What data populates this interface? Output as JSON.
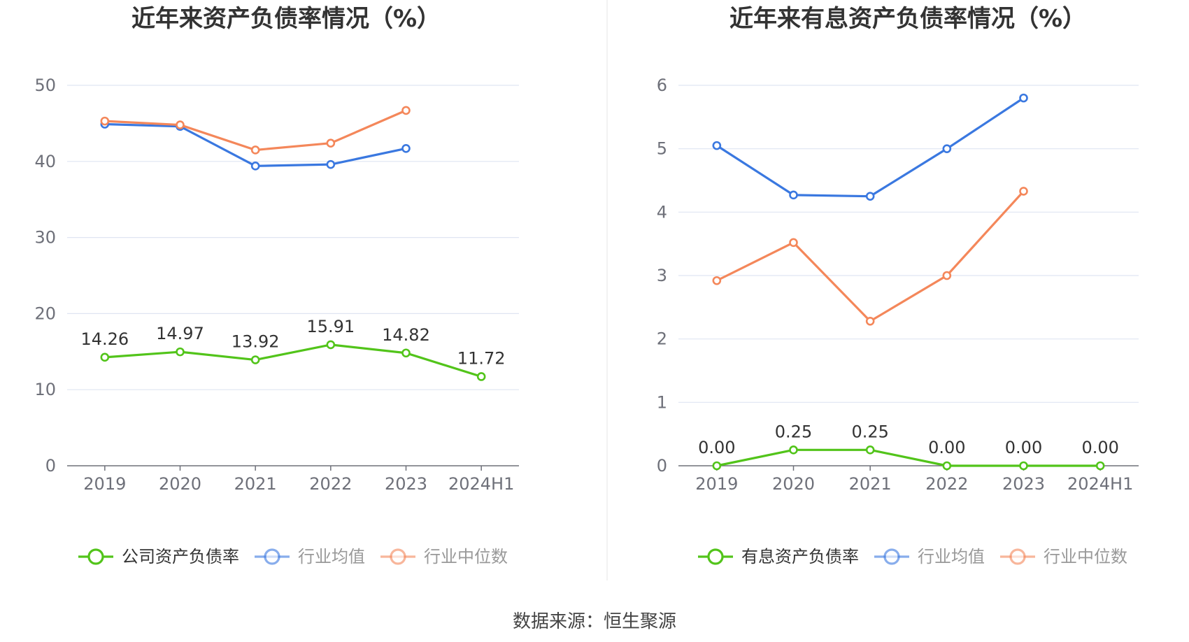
{
  "chart_data": [
    {
      "type": "line",
      "title": "近年来资产负债率情况（%）",
      "categories": [
        "2019",
        "2020",
        "2021",
        "2022",
        "2023",
        "2024H1"
      ],
      "ylim": [
        0,
        50
      ],
      "yticks": [
        "0",
        "10",
        "20",
        "30",
        "40",
        "50"
      ],
      "grid": true,
      "legend_position": "bottom",
      "series": [
        {
          "name": "公司资产负债率",
          "color": "#52c41a",
          "values": [
            14.26,
            14.97,
            13.92,
            15.91,
            14.82,
            11.72
          ],
          "labels": [
            "14.26",
            "14.97",
            "13.92",
            "15.91",
            "14.82",
            "11.72"
          ]
        },
        {
          "name": "行业均值",
          "color": "#3a78e0",
          "values": [
            44.9,
            44.6,
            39.4,
            39.6,
            41.7,
            null
          ]
        },
        {
          "name": "行业中位数",
          "color": "#f4875a",
          "values": [
            45.3,
            44.8,
            41.5,
            42.4,
            46.7,
            null
          ]
        }
      ]
    },
    {
      "type": "line",
      "title": "近年来有息资产负债率情况（%）",
      "categories": [
        "2019",
        "2020",
        "2021",
        "2022",
        "2023",
        "2024H1"
      ],
      "ylim": [
        0,
        6
      ],
      "yticks": [
        "0",
        "1",
        "2",
        "3",
        "4",
        "5",
        "6"
      ],
      "grid": true,
      "legend_position": "bottom",
      "series": [
        {
          "name": "有息资产负债率",
          "color": "#52c41a",
          "values": [
            0.0,
            0.25,
            0.25,
            0.0,
            0.0,
            0.0
          ],
          "labels": [
            "0.00",
            "0.25",
            "0.25",
            "0.00",
            "0.00",
            "0.00"
          ]
        },
        {
          "name": "行业均值",
          "color": "#3a78e0",
          "values": [
            5.05,
            4.27,
            4.25,
            5.0,
            5.8,
            null
          ]
        },
        {
          "name": "行业中位数",
          "color": "#f4875a",
          "values": [
            2.92,
            3.52,
            2.28,
            3.0,
            4.33,
            null
          ]
        }
      ]
    }
  ],
  "source_text": "数据来源：恒生聚源",
  "legend_text_colors": {
    "active": "#333333",
    "muted": "#999999"
  },
  "grid_color": "#dfe5f2",
  "axis_color": "#6e7079"
}
